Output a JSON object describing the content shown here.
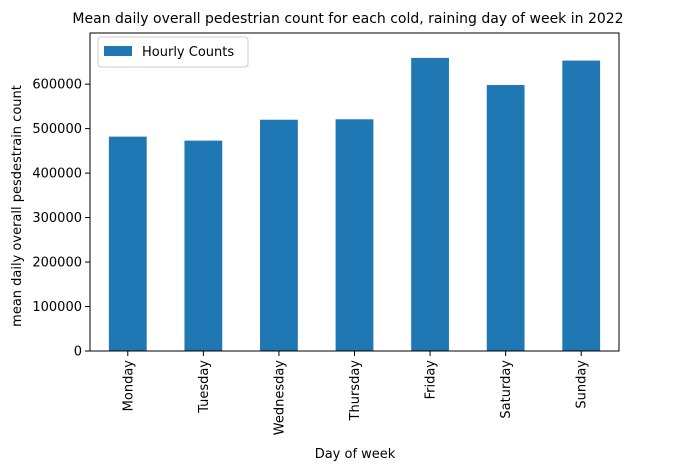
{
  "chart_data": {
    "type": "bar",
    "title": "Mean daily overall pedestrian count for each cold, raining day of week in 2022",
    "xlabel": "Day of week",
    "ylabel": "mean daily overall pesdestrain count",
    "categories": [
      "Monday",
      "Tuesday",
      "Wednesday",
      "Thursday",
      "Friday",
      "Saturday",
      "Sunday"
    ],
    "series": [
      {
        "name": "Hourly Counts",
        "values": [
          482000,
          473000,
          520000,
          521000,
          659000,
          598000,
          653000
        ],
        "color": "#1f77b4"
      }
    ],
    "ylim": [
      0,
      715000
    ],
    "yticks": [
      0,
      100000,
      200000,
      300000,
      400000,
      500000,
      600000
    ],
    "grid": false,
    "legend_position": "top-left"
  }
}
